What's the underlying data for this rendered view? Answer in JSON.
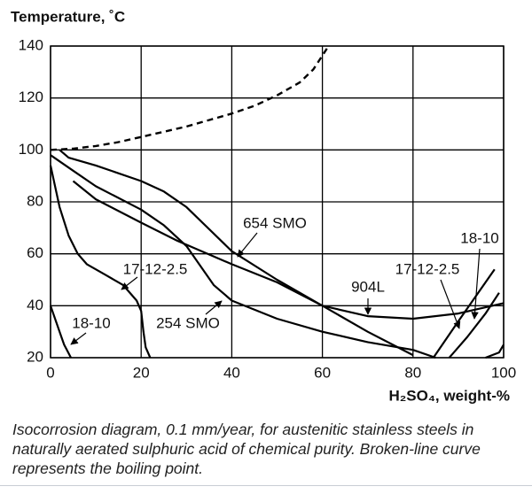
{
  "chart_data": {
    "type": "line",
    "y_axis_label": "Temperature, ˚C",
    "x_axis_label": "H₂SO₄, weight-%",
    "caption": "Isocorrosion diagram, 0.1 mm/year, for austenitic stainless steels in naturally aerated sulphuric acid of chemical purity. Broken-line curve represents the boiling point.",
    "xlim": [
      0,
      100
    ],
    "xticks": [
      0,
      20,
      40,
      60,
      80,
      100
    ],
    "ylim": [
      20,
      140
    ],
    "yticks": [
      20,
      40,
      60,
      80,
      100,
      120,
      140
    ],
    "grid": true,
    "series": [
      {
        "color": "#000000",
        "dashed": true,
        "x": [
          0,
          5,
          10,
          15,
          20,
          25,
          30,
          35,
          40,
          45,
          50,
          55,
          58,
          61
        ],
        "values": [
          100,
          100.5,
          101.5,
          103,
          105,
          107,
          109,
          111.5,
          114,
          117,
          121,
          126,
          131,
          139
        ]
      },
      {
        "name": "18-10",
        "color": "#000000",
        "x": [
          0,
          1,
          2,
          3,
          4.5,
          null,
          88,
          92,
          96,
          99
        ],
        "values": [
          40,
          35,
          30,
          25,
          20,
          null,
          20,
          28,
          37,
          45
        ]
      },
      {
        "name": "17-12-2.5",
        "color": "#000000",
        "x": [
          0,
          1,
          2,
          4,
          6,
          8,
          12,
          16,
          19,
          20,
          20.5,
          21,
          22,
          null,
          84.5,
          90,
          94,
          98
        ],
        "values": [
          94,
          86,
          78,
          67,
          60,
          56,
          52,
          48,
          42,
          38,
          30,
          24,
          20,
          null,
          20,
          34,
          44,
          54
        ]
      },
      {
        "name": "254 SMO",
        "color": "#000000",
        "x": [
          0,
          5,
          10,
          20,
          25,
          30,
          36,
          40,
          50,
          60,
          70,
          80,
          85,
          null,
          96,
          99,
          100
        ],
        "values": [
          98,
          92,
          86,
          77,
          71,
          63,
          48,
          42,
          35,
          30,
          26,
          23,
          20,
          null,
          20,
          22,
          25
        ]
      },
      {
        "name": "654 SMO",
        "color": "#000000",
        "x": [
          2,
          4,
          10,
          20,
          25,
          30,
          40,
          50,
          60,
          70,
          80
        ],
        "values": [
          100,
          97,
          94,
          88,
          84,
          78,
          61,
          50,
          40,
          30,
          21
        ]
      },
      {
        "name": "904L",
        "color": "#000000",
        "x": [
          5,
          10,
          20,
          28,
          40,
          50,
          60,
          70,
          80,
          90,
          100
        ],
        "values": [
          88,
          81,
          72,
          65,
          56,
          49,
          40,
          36,
          35,
          37,
          41
        ]
      }
    ]
  }
}
